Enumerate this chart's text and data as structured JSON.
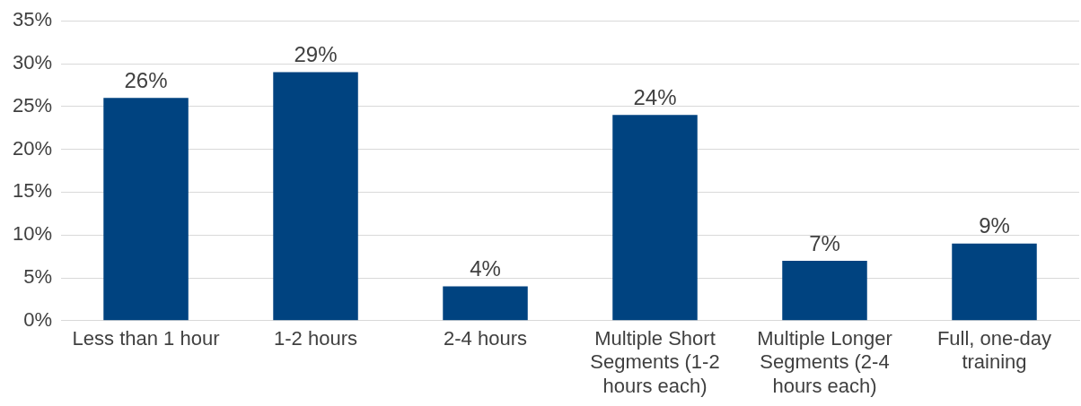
{
  "chart_data": {
    "type": "bar",
    "categories": [
      "Less than 1 hour",
      "1-2 hours",
      "2-4 hours",
      "Multiple Short Segments (1-2 hours each)",
      "Multiple Longer Segments (2-4 hours each)",
      "Full, one-day training"
    ],
    "values": [
      26,
      29,
      4,
      24,
      7,
      9
    ],
    "color": "#004380",
    "value_labels": [
      "26%",
      "29%",
      "4%",
      "24%",
      "7%",
      "9%"
    ],
    "ylim": [
      0,
      35
    ],
    "yticks": [
      {
        "value": 0,
        "label": "0%"
      },
      {
        "value": 5,
        "label": "5%"
      },
      {
        "value": 10,
        "label": "10%"
      },
      {
        "value": 15,
        "label": "15%"
      },
      {
        "value": 20,
        "label": "20%"
      },
      {
        "value": 25,
        "label": "25%"
      },
      {
        "value": 30,
        "label": "30%"
      },
      {
        "value": 35,
        "label": "35%"
      }
    ],
    "grid": "y",
    "legend": false
  }
}
